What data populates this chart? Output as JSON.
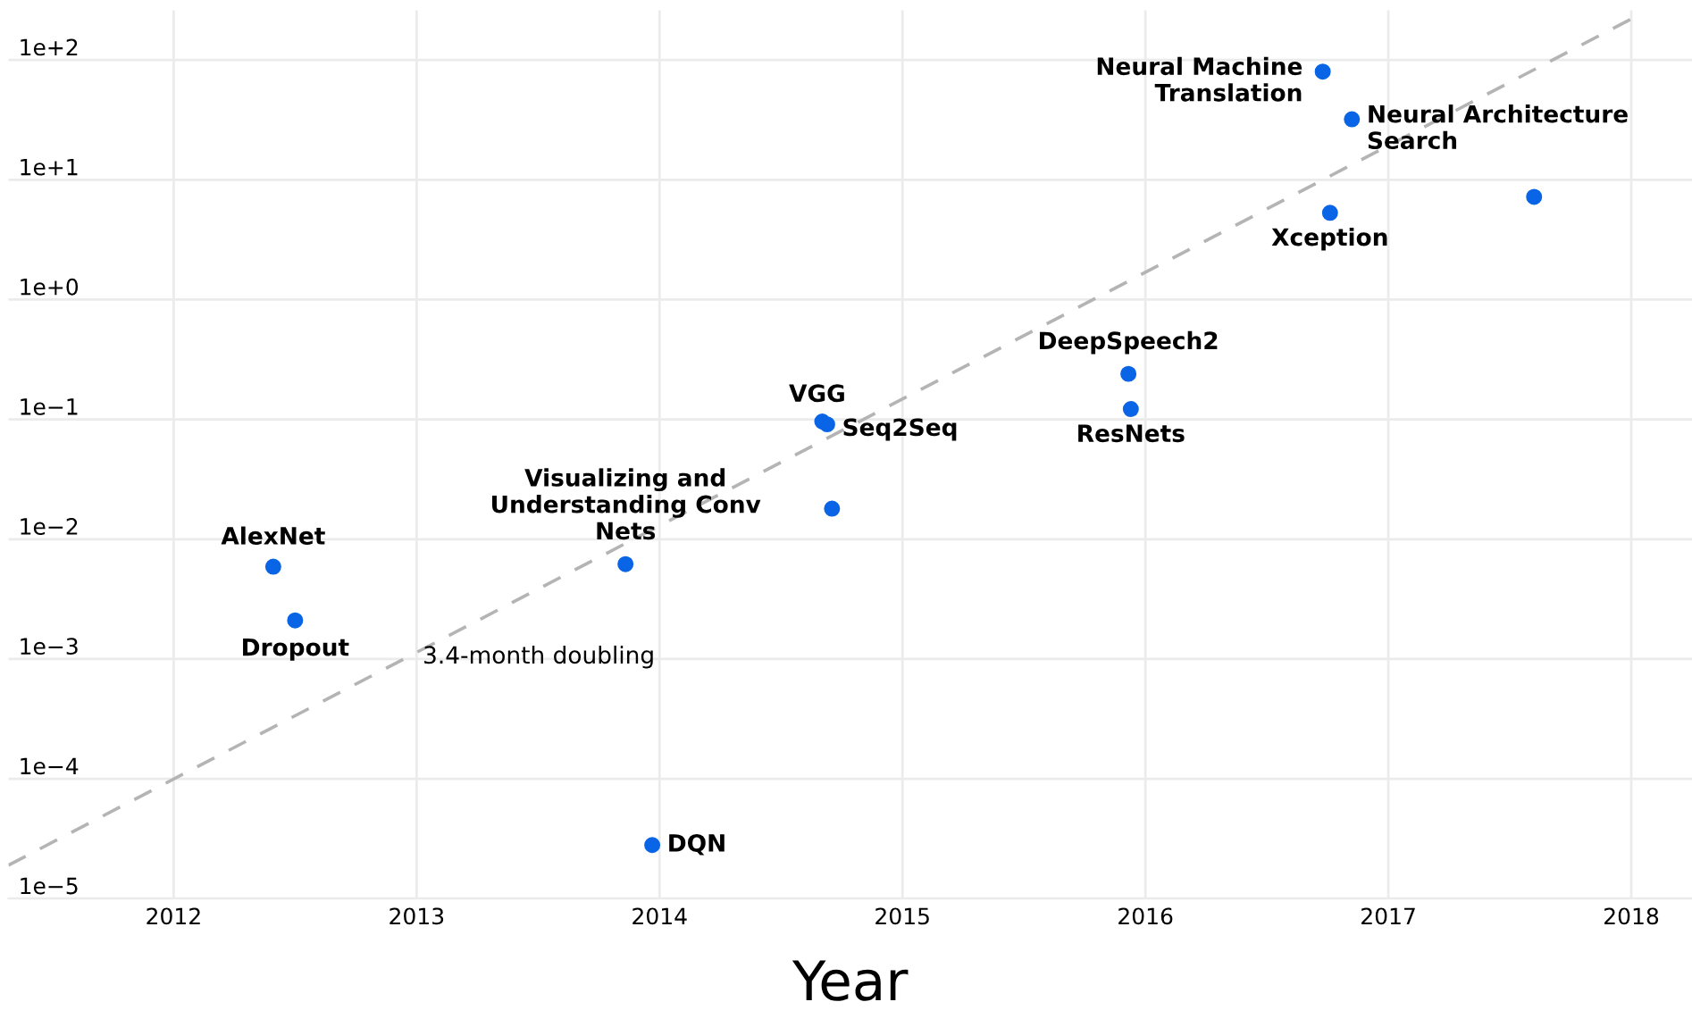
{
  "chart_data": {
    "type": "scatter",
    "xlabel": "Year",
    "xlim": [
      2011.32,
      2018.25
    ],
    "xticks": [
      2012,
      2013,
      2014,
      2015,
      2016,
      2017,
      2018
    ],
    "ylim": [
      1e-05,
      260
    ],
    "log": true,
    "yticks": [
      {
        "value": 1e-05,
        "label": "1e−5"
      },
      {
        "value": 0.0001,
        "label": "1e−4"
      },
      {
        "value": 0.001,
        "label": "1e−3"
      },
      {
        "value": 0.01,
        "label": "1e−2"
      },
      {
        "value": 0.1,
        "label": "1e−1"
      },
      {
        "value": 1,
        "label": "1e+0"
      },
      {
        "value": 10,
        "label": "1e+1"
      },
      {
        "value": 100,
        "label": "1e+2"
      }
    ],
    "grid": true,
    "series": [
      {
        "marker": "circle",
        "color": "#0a64e6",
        "x": [
          2012.41,
          2012.5,
          2013.86,
          2013.97,
          2014.67,
          2014.69,
          2014.71,
          2015.93,
          2015.94,
          2016.76,
          2016.73,
          2016.85,
          2017.6
        ],
        "values": [
          0.0059,
          0.0021,
          0.0062,
          2.8e-05,
          0.096,
          0.091,
          0.018,
          0.24,
          0.122,
          5.3,
          80,
          32,
          7.2
        ]
      },
      {
        "type": "line",
        "color": "#b4b4b4",
        "line_style": "dashed",
        "x": [
          2011.32,
          2018.0
        ],
        "values": [
          1.9e-05,
          220
        ]
      }
    ],
    "annotations": [
      {
        "text": "AlexNet",
        "x": 2012.41,
        "y": 0.0059
      },
      {
        "text": "Dropout",
        "x": 2012.5,
        "y": 0.0021
      },
      {
        "text": "Visualizing and\nUnderstanding Conv\nNets",
        "x": 2013.86,
        "y": 0.0062
      },
      {
        "text": "DQN",
        "x": 2013.97,
        "y": 2.8e-05
      },
      {
        "text": "VGG",
        "x": 2014.67,
        "y": 0.096
      },
      {
        "text": "Seq2Seq",
        "x": 2014.69,
        "y": 0.091
      },
      {
        "text": "DeepSpeech2",
        "x": 2015.93,
        "y": 0.24
      },
      {
        "text": "ResNets",
        "x": 2015.94,
        "y": 0.122
      },
      {
        "text": "Xception",
        "x": 2016.76,
        "y": 5.3
      },
      {
        "text": "Neural Machine\nTranslation",
        "x": 2016.73,
        "y": 80
      },
      {
        "text": "Neural Architecture\nSearch",
        "x": 2016.85,
        "y": 32
      },
      "3.4-month doubling"
    ]
  }
}
